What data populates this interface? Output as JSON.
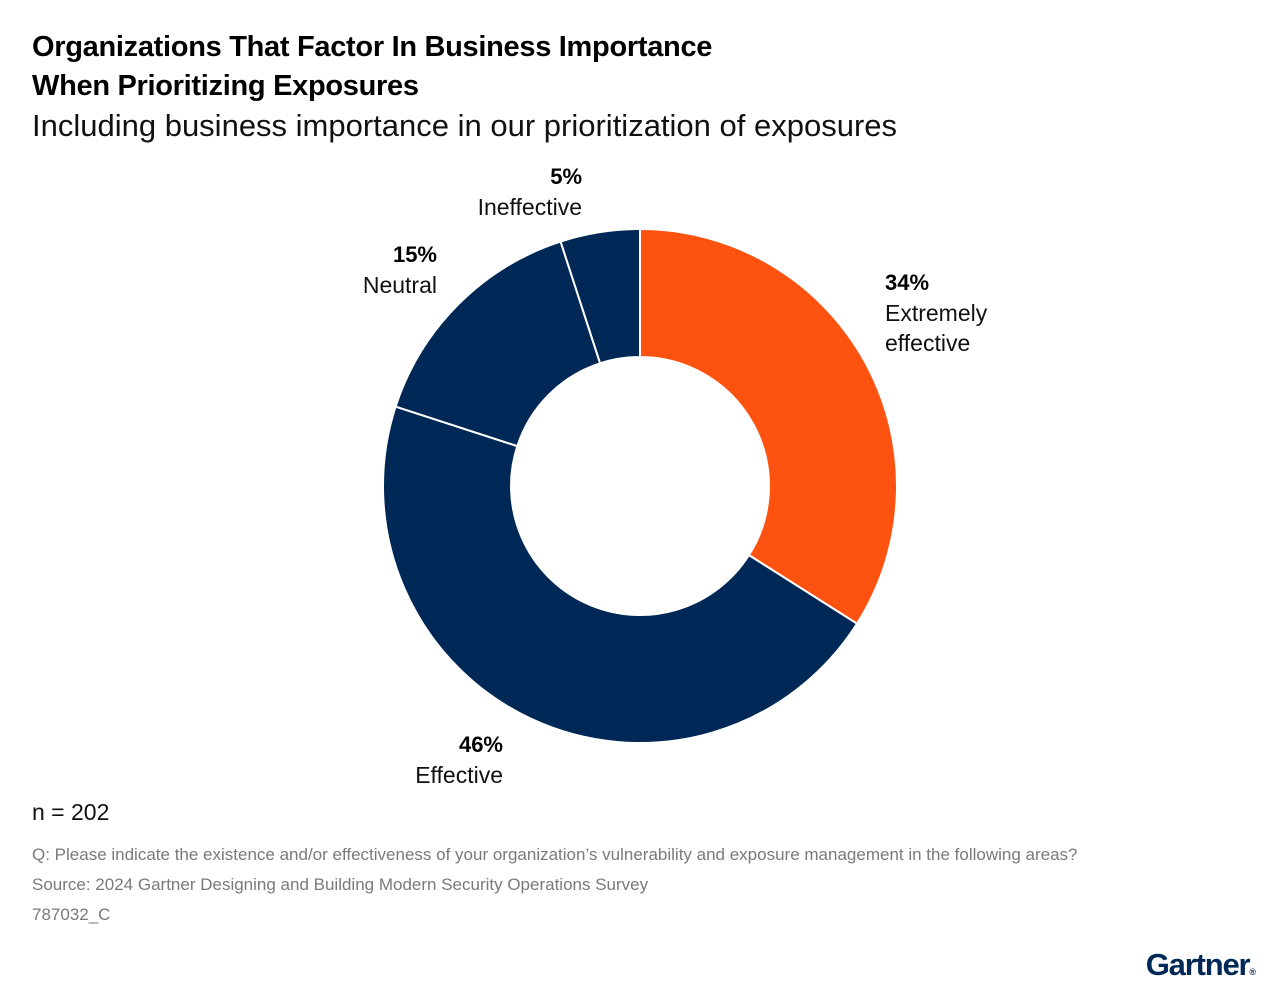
{
  "title_lines": [
    "Organizations That Factor In Business Importance",
    "When Prioritizing Exposures"
  ],
  "subtitle": "Including business importance in our prioritization of exposures",
  "chart_data": {
    "type": "pie",
    "donut": true,
    "title": "Organizations That Factor In Business Importance When Prioritizing Exposures",
    "subtitle": "Including business importance in our prioritization of exposures",
    "categories": [
      "Extremely effective",
      "Effective",
      "Neutral",
      "Ineffective"
    ],
    "values": [
      34,
      46,
      15,
      5
    ],
    "value_labels": [
      "34%",
      "46%",
      "15%",
      "5%"
    ],
    "label_lines": [
      [
        "Extremely",
        "effective"
      ],
      [
        "Effective"
      ],
      [
        "Neutral"
      ],
      [
        "Ineffective"
      ]
    ],
    "colors": [
      "#FE5210",
      "#002856",
      "#002856",
      "#002856"
    ],
    "legend": "none"
  },
  "sample_size": "n = 202",
  "footnotes": {
    "question": "Q: Please indicate the existence and/or effectiveness of your organization’s vulnerability and exposure management in the following areas?",
    "source": "Source: 2024 Gartner Designing and Building Modern Security Operations Survey",
    "id": "787032_C"
  },
  "brand": {
    "name": "Gartner",
    "mark": "®",
    "color": "#002856"
  }
}
